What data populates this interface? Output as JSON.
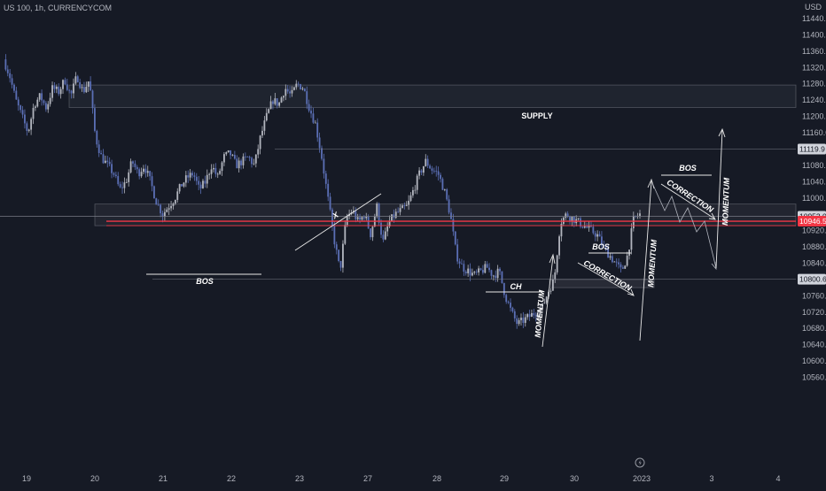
{
  "header": {
    "symbol": "US 100, 1h, CURRENCYCOM"
  },
  "chart_data": {
    "type": "candlestick",
    "currency": "USD",
    "ylim": [
      10540,
      11480
    ],
    "y_ticks": [
      11440,
      11400,
      11360,
      11320,
      11280,
      11240,
      11200,
      11160,
      11120,
      11080,
      11040,
      11000,
      10960,
      10920,
      10880,
      10840,
      10800,
      10760,
      10720,
      10680,
      10640,
      10600,
      10560
    ],
    "x_ticks": [
      "19",
      "20",
      "21",
      "22",
      "23",
      "27",
      "28",
      "29",
      "30",
      "2023",
      "3",
      "4"
    ],
    "price_tags": [
      {
        "label": "11119.9",
        "value": 11119.9,
        "style": "light"
      },
      {
        "label": "10952.0",
        "value": 10955,
        "style": "light"
      },
      {
        "label": "10946.5",
        "value": 10943,
        "style": "red"
      },
      {
        "label": "10800.6",
        "value": 10800.6,
        "style": "light"
      }
    ],
    "annotations": {
      "supply": "SUPPLY",
      "bos_left": "BOS",
      "x_mark": "X",
      "ch": "CH",
      "momentum_1": "MOMENTUM",
      "bos_mid": "BOS",
      "correction_1": "CORRECTION",
      "momentum_2": "MOMENTUM",
      "bos_right": "BOS",
      "correction_2": "CORRECTION",
      "momentum_3": "MOMENTUM"
    },
    "zones": {
      "supply": [
        11222,
        11277
      ],
      "demand_left": [
        10932,
        10985
      ],
      "demand_right": [
        10780,
        10800
      ]
    },
    "series_close": [
      11340,
      11300,
      11240,
      11200,
      11160,
      11230,
      11250,
      11220,
      11270,
      11260,
      11290,
      11250,
      11300,
      11260,
      11290,
      11150,
      11100,
      11080,
      11060,
      11020,
      11040,
      11090,
      11060,
      11080,
      11040,
      10990,
      10960,
      10980,
      11000,
      11030,
      11050,
      11060,
      11020,
      11040,
      11080,
      11050,
      11100,
      11110,
      11080,
      11090,
      11100,
      11080,
      11150,
      11200,
      11240,
      11230,
      11270,
      11250,
      11280,
      11270,
      11220,
      11180,
      11100,
      11000,
      10900,
      10820,
      10950,
      10970,
      10940,
      10960,
      10910,
      10980,
      10890,
      10940,
      10960,
      10970,
      10980,
      11020,
      11060,
      11090,
      11070,
      11060,
      11020,
      10960,
      10860,
      10830,
      10820,
      10810,
      10820,
      10830,
      10810,
      10820,
      10760,
      10720,
      10690,
      10700,
      10710,
      10720,
      10730,
      10770,
      10800,
      10940,
      10960,
      10950,
      10940,
      10930,
      10920,
      10910,
      10880,
      10860,
      10840,
      10820,
      10860,
      10950,
      10960
    ]
  }
}
